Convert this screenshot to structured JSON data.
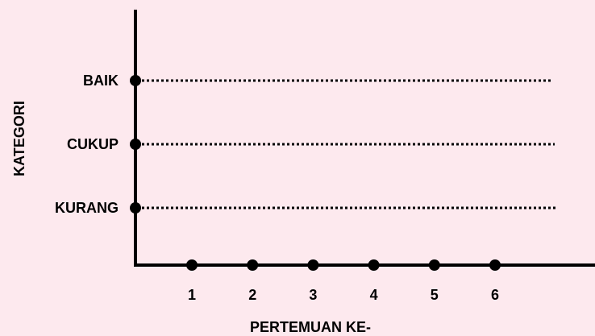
{
  "chart_data": {
    "type": "scatter",
    "title": "",
    "xlabel": "PERTEMUAN KE-",
    "ylabel": "KATEGORI",
    "categories_y": [
      "KURANG",
      "CUKUP",
      "BAIK"
    ],
    "x_ticks": [
      "1",
      "2",
      "3",
      "4",
      "5",
      "6"
    ],
    "grid": "dotted horizontal reference lines at each category",
    "colors": {
      "background": "#fde9ee",
      "ink": "#000000"
    }
  }
}
